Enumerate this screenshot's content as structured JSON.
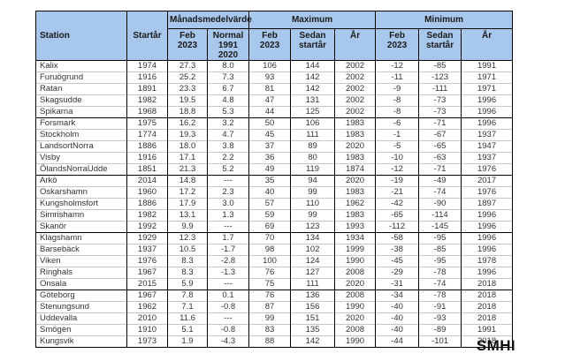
{
  "colors": {
    "header_bg": "#a8c7ec",
    "header_text": "#1a1a1a",
    "border_dark": "#000000",
    "border_light": "#c6c6c6",
    "text": "#333333"
  },
  "header": {
    "station": "Station",
    "startar": "Startår",
    "manadsmedelvarde": "Månadsmedelvärde",
    "maximum": "Maximum",
    "minimum": "Minimum",
    "feb_l1": "Feb",
    "feb_l2": "2023",
    "normal_l1": "Normal",
    "normal_l2": "1991 2020",
    "sedan_l1": "Sedan",
    "sedan_l2": "startår",
    "ar": "År"
  },
  "table": {
    "groups": [
      [
        [
          "Kalix",
          "1974",
          "27.3",
          "8.0",
          "106",
          "144",
          "2002",
          "-12",
          "-85",
          "1991"
        ],
        [
          "Furuögrund",
          "1916",
          "25.2",
          "7.3",
          "93",
          "142",
          "2002",
          "-11",
          "-123",
          "1971"
        ],
        [
          "Ratan",
          "1891",
          "23.3",
          "6.7",
          "81",
          "142",
          "2002",
          "-9",
          "-111",
          "1971"
        ],
        [
          "Skagsudde",
          "1982",
          "19.5",
          "4.8",
          "47",
          "131",
          "2002",
          "-8",
          "-73",
          "1996"
        ],
        [
          "Spikarna",
          "1968",
          "18.8",
          "5.3",
          "44",
          "125",
          "2002",
          "-8",
          "-73",
          "1996"
        ]
      ],
      [
        [
          "Forsmark",
          "1975",
          "16.2",
          "3.2",
          "50",
          "106",
          "1983",
          "-6",
          "-71",
          "1996"
        ],
        [
          "Stockholm",
          "1774",
          "19.3",
          "4.7",
          "45",
          "111",
          "1983",
          "-1",
          "-67",
          "1937"
        ],
        [
          "LandsortNorra",
          "1886",
          "18.0",
          "3.8",
          "37",
          "89",
          "2020",
          "-5",
          "-65",
          "1947"
        ],
        [
          "Visby",
          "1916",
          "17.1",
          "2.2",
          "36",
          "80",
          "1983",
          "-10",
          "-63",
          "1937"
        ],
        [
          "ÖlandsNorraUdde",
          "1851",
          "21.3",
          "5.2",
          "49",
          "119",
          "1874",
          "-12",
          "-71",
          "1976"
        ]
      ],
      [
        [
          "Arkö",
          "2014",
          "14.8",
          "---",
          "35",
          "94",
          "2020",
          "-19",
          "-49",
          "2017"
        ],
        [
          "Oskarshamn",
          "1960",
          "17.2",
          "2.3",
          "40",
          "99",
          "1983",
          "-21",
          "-74",
          "1976"
        ],
        [
          "Kungsholmsfort",
          "1886",
          "17.9",
          "3.0",
          "57",
          "110",
          "1962",
          "-42",
          "-90",
          "1897"
        ],
        [
          "Simrishamn",
          "1982",
          "13.1",
          "1.3",
          "59",
          "99",
          "1983",
          "-65",
          "-114",
          "1996"
        ],
        [
          "Skanör",
          "1992",
          "9.9",
          "---",
          "69",
          "123",
          "1993",
          "-112",
          "-145",
          "1996"
        ]
      ],
      [
        [
          "Klagshamn",
          "1929",
          "12.3",
          "1.7",
          "70",
          "134",
          "1934",
          "-58",
          "-95",
          "1996"
        ],
        [
          "Barsebäck",
          "1937",
          "10.5",
          "-1.7",
          "98",
          "102",
          "1999",
          "-38",
          "-85",
          "1996"
        ],
        [
          "Viken",
          "1976",
          "8.3",
          "-2.8",
          "100",
          "124",
          "1990",
          "-45",
          "-95",
          "1978"
        ],
        [
          "Ringhals",
          "1967",
          "8.3",
          "-1.3",
          "76",
          "127",
          "2008",
          "-29",
          "-78",
          "1996"
        ],
        [
          "Onsala",
          "2015",
          "5.9",
          "---",
          "75",
          "111",
          "2020",
          "-31",
          "-74",
          "2018"
        ]
      ],
      [
        [
          "Göteborg",
          "1967",
          "7.8",
          "0.1",
          "76",
          "136",
          "2008",
          "-34",
          "-78",
          "2018"
        ],
        [
          "Stenungsund",
          "1962",
          "7.1",
          "-0.8",
          "87",
          "156",
          "1990",
          "-40",
          "-91",
          "2018"
        ],
        [
          "Uddevalla",
          "2010",
          "11.6",
          "---",
          "99",
          "151",
          "2020",
          "-40",
          "-93",
          "2018"
        ],
        [
          "Smögen",
          "1910",
          "5.1",
          "-0.8",
          "83",
          "135",
          "2008",
          "-40",
          "-89",
          "1991"
        ],
        [
          "Kungsvik",
          "1973",
          "1.9",
          "-4.3",
          "88",
          "142",
          "1990",
          "-44",
          "-101",
          "2018"
        ]
      ]
    ]
  },
  "footer": {
    "logo": "SMHI"
  }
}
